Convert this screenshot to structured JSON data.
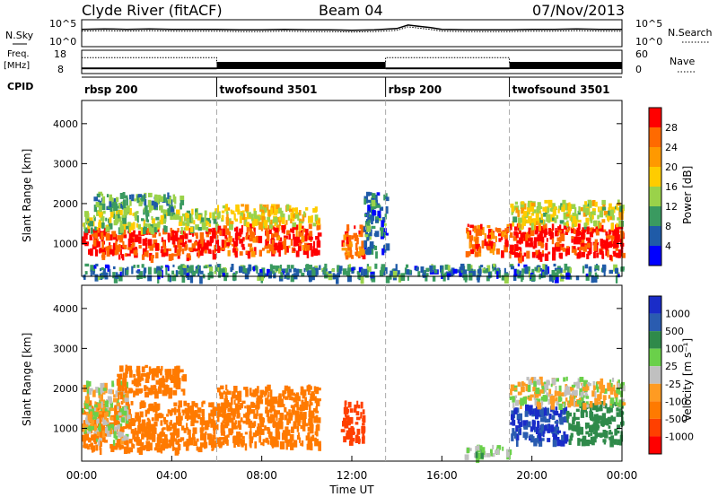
{
  "header": {
    "station": "Clyde River (fitACF)",
    "beam": "Beam 04",
    "date": "07/Nov/2013"
  },
  "time_axis": {
    "label": "Time UT",
    "range_hours": [
      0,
      24
    ],
    "ticks": [
      "00:00",
      "04:00",
      "08:00",
      "12:00",
      "16:00",
      "20:00",
      "00:00"
    ],
    "tick_hours": [
      0,
      4,
      8,
      12,
      16,
      20,
      24
    ]
  },
  "panels": {
    "nsky": {
      "left_label": "N.Sky",
      "left_ticks": [
        "10^5",
        "10^0"
      ],
      "right_ticks": [
        "10^5",
        "10^0"
      ],
      "right_label": "N.Search"
    },
    "freq": {
      "left_label_1": "Freq.",
      "left_label_2": "[MHz]",
      "left_ticks": [
        "18",
        "8"
      ],
      "right_ticks": [
        "60",
        "0"
      ],
      "right_label": "Nave"
    },
    "cpid": {
      "left_label": "CPID",
      "segments": [
        {
          "label": "rbsp 200",
          "start_hour": 0.0
        },
        {
          "label": "twofsound 3501",
          "start_hour": 6.0
        },
        {
          "label": "rbsp 200",
          "start_hour": 13.5
        },
        {
          "label": "twofsound 3501",
          "start_hour": 19.0
        }
      ]
    }
  },
  "range_axis": {
    "label": "Slant Range [km]",
    "ticks": [
      1000,
      2000,
      3000,
      4000
    ],
    "range_km": [
      180,
      4580
    ]
  },
  "power_scale": {
    "label": "Power [dB]",
    "ticks": [
      "28",
      "24",
      "20",
      "16",
      "12",
      "8",
      "4"
    ],
    "colors": [
      "#ff0000",
      "#ff6a00",
      "#ff9900",
      "#ffcc00",
      "#9ad24a",
      "#3a9a60",
      "#1f5ba8",
      "#0000ff"
    ]
  },
  "velocity_scale": {
    "label": "Velocity [m s⁻¹]",
    "ticks": [
      "1000",
      "500",
      "100",
      "25",
      "-25",
      "-100",
      "-500",
      "-1000"
    ],
    "colors": [
      "#1a2cc8",
      "#2a5cb0",
      "#2f8a4a",
      "#6ad04a",
      "#c0c0c0",
      "#ff9b22",
      "#ff7a00",
      "#ff4000",
      "#ff0000"
    ]
  },
  "chart_data": [
    {
      "type": "line",
      "title": "N.Sky / N.Search",
      "series": [
        {
          "name": "N.Sky",
          "x_hours": [
            0,
            1,
            2,
            3,
            4,
            5,
            6,
            7,
            8,
            9,
            10,
            11,
            12,
            13,
            14,
            14.5,
            15,
            15.5,
            16,
            17,
            18,
            19,
            20,
            21,
            22,
            23,
            24
          ],
          "y_log10": [
            3.6,
            3.7,
            3.6,
            3.7,
            3.6,
            3.6,
            3.6,
            3.5,
            3.5,
            3.6,
            3.5,
            3.5,
            3.4,
            3.5,
            3.8,
            4.6,
            4.3,
            4.0,
            3.6,
            3.5,
            3.5,
            3.5,
            3.6,
            3.6,
            3.7,
            3.6,
            3.6
          ]
        }
      ]
    },
    {
      "type": "line",
      "title": "Freq / Nave",
      "series": [
        {
          "name": "Freq",
          "x_hours": [
            0,
            6,
            6,
            13.5,
            13.5,
            19,
            19,
            24
          ],
          "values_mhz": [
            10,
            10,
            10.5,
            10.5,
            10,
            10,
            10.5,
            10.5
          ]
        },
        {
          "name": "Nave",
          "x_hours": [
            0,
            6,
            6,
            13.5,
            13.5,
            19,
            19,
            24
          ],
          "values": [
            42,
            42,
            28,
            28,
            42,
            42,
            28,
            28
          ]
        }
      ]
    },
    {
      "type": "heatmap",
      "title": "Power",
      "quantity_unit": "dB",
      "xlabel": "Time UT",
      "ylabel": "Slant Range [km]",
      "ylim": [
        180,
        4580
      ],
      "regions": [
        {
          "t0": 0.0,
          "t1": 6.0,
          "r0": 700,
          "r1": 1400,
          "value": 28
        },
        {
          "t0": 0.0,
          "t1": 6.0,
          "r0": 1400,
          "r1": 1900,
          "value": 12
        },
        {
          "t0": 0.5,
          "t1": 4.5,
          "r0": 1900,
          "r1": 2300,
          "value": 8
        },
        {
          "t0": 6.0,
          "t1": 10.5,
          "r0": 800,
          "r1": 1500,
          "value": 26
        },
        {
          "t0": 6.0,
          "t1": 10.5,
          "r0": 1500,
          "r1": 2000,
          "value": 16
        },
        {
          "t0": 11.5,
          "t1": 12.5,
          "r0": 700,
          "r1": 1500,
          "value": 24
        },
        {
          "t0": 12.5,
          "t1": 13.5,
          "r0": 800,
          "r1": 2300,
          "value": 6
        },
        {
          "t0": 17.0,
          "t1": 19.0,
          "r0": 800,
          "r1": 1500,
          "value": 24
        },
        {
          "t0": 19.0,
          "t1": 24.0,
          "r0": 700,
          "r1": 1500,
          "value": 28
        },
        {
          "t0": 19.0,
          "t1": 24.0,
          "r0": 1500,
          "r1": 2100,
          "value": 14
        },
        {
          "t0": 0.0,
          "t1": 24.0,
          "r0": 180,
          "r1": 500,
          "value": 6
        }
      ]
    },
    {
      "type": "heatmap",
      "title": "Velocity",
      "quantity_unit": "m s^-1",
      "xlabel": "Time UT",
      "ylabel": "Slant Range [km]",
      "ylim": [
        180,
        4580
      ],
      "regions": [
        {
          "t0": 0.0,
          "t1": 6.0,
          "r0": 500,
          "r1": 1700,
          "value": -250
        },
        {
          "t0": 0.0,
          "t1": 2.0,
          "r0": 700,
          "r1": 2200,
          "value": 0
        },
        {
          "t0": 1.5,
          "t1": 4.5,
          "r0": 1900,
          "r1": 2600,
          "value": -250
        },
        {
          "t0": 6.0,
          "t1": 10.5,
          "r0": 600,
          "r1": 2100,
          "value": -250
        },
        {
          "t0": 11.5,
          "t1": 12.5,
          "r0": 700,
          "r1": 1700,
          "value": -700
        },
        {
          "t0": 17.0,
          "t1": 19.0,
          "r0": 300,
          "r1": 600,
          "value": 50
        },
        {
          "t0": 19.0,
          "t1": 21.5,
          "r0": 700,
          "r1": 1600,
          "value": 1000
        },
        {
          "t0": 21.5,
          "t1": 24.0,
          "r0": 700,
          "r1": 1700,
          "value": 300
        },
        {
          "t0": 19.0,
          "t1": 24.0,
          "r0": 1600,
          "r1": 2300,
          "value": 0
        }
      ]
    }
  ]
}
